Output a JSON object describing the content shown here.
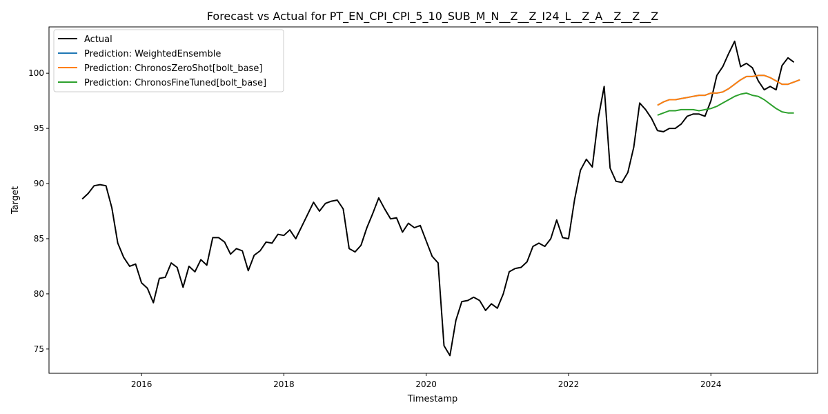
{
  "chart_data": {
    "type": "line",
    "title": "Forecast vs Actual for PT_EN_CPI_CPI_5_10_SUB_M_N__Z__Z_I24_L__Z_A__Z__Z__Z",
    "xlabel": "Timestamp",
    "ylabel": "Target",
    "xlim": [
      2014.7,
      2025.5
    ],
    "ylim": [
      72.8,
      104.2
    ],
    "x_ticks": [
      {
        "value": 2016,
        "label": "2016"
      },
      {
        "value": 2018,
        "label": "2018"
      },
      {
        "value": 2020,
        "label": "2020"
      },
      {
        "value": 2022,
        "label": "2022"
      },
      {
        "value": 2024,
        "label": "2024"
      }
    ],
    "y_ticks": [
      75,
      80,
      85,
      90,
      95,
      100
    ],
    "grid": false,
    "legend_position": "top-left",
    "series": [
      {
        "name": "Actual",
        "color": "#000000",
        "start": 2015.167,
        "step": 0.08333,
        "values": [
          88.6,
          89.1,
          89.8,
          89.9,
          89.8,
          87.8,
          84.6,
          83.3,
          82.5,
          82.7,
          81.0,
          80.5,
          79.2,
          81.4,
          81.5,
          82.8,
          82.4,
          80.6,
          82.5,
          82.0,
          83.1,
          82.6,
          85.1,
          85.1,
          84.7,
          83.6,
          84.1,
          83.9,
          82.1,
          83.5,
          83.9,
          84.7,
          84.6,
          85.4,
          85.3,
          85.8,
          85.0,
          86.1,
          87.2,
          88.3,
          87.5,
          88.2,
          88.4,
          88.5,
          87.7,
          84.1,
          83.8,
          84.4,
          86.0,
          87.3,
          88.7,
          87.7,
          86.8,
          86.9,
          85.6,
          86.4,
          86.0,
          86.2,
          84.8,
          83.4,
          82.8,
          75.3,
          74.4,
          77.6,
          79.3,
          79.4,
          79.7,
          79.4,
          78.5,
          79.1,
          78.7,
          80.0,
          82.0,
          82.3,
          82.4,
          82.9,
          84.3,
          84.6,
          84.3,
          85.0,
          86.7,
          85.1,
          85.0,
          88.5,
          91.2,
          92.2,
          91.5,
          95.9,
          98.8,
          91.4,
          90.2,
          90.1,
          91.0,
          93.3,
          97.3,
          96.7,
          95.9,
          94.8,
          94.7,
          95.0,
          95.0,
          95.4,
          96.1,
          96.3,
          96.3,
          96.1,
          97.5,
          99.8,
          100.6,
          101.8,
          102.9,
          100.6,
          100.9,
          100.5,
          99.3,
          98.5,
          98.8,
          98.5,
          100.7,
          101.4,
          101.0
        ]
      },
      {
        "name": "Prediction: WeightedEnsemble",
        "color": "#1f77b4",
        "start": 2023.25,
        "step": 0.08333,
        "values": [
          97.1,
          97.4,
          97.6,
          97.6,
          97.7,
          97.8,
          97.9,
          98.0,
          98.0,
          98.2,
          98.2,
          98.3,
          98.6,
          99.0,
          99.4,
          99.7,
          99.7,
          99.8,
          99.8,
          99.6,
          99.3,
          99.0,
          99.0,
          99.2,
          99.4
        ]
      },
      {
        "name": "Prediction: ChronosZeroShot[bolt_base]",
        "color": "#ff7f0e",
        "start": 2023.25,
        "step": 0.08333,
        "values": [
          97.1,
          97.4,
          97.6,
          97.6,
          97.7,
          97.8,
          97.9,
          98.0,
          98.0,
          98.2,
          98.2,
          98.3,
          98.6,
          99.0,
          99.4,
          99.7,
          99.7,
          99.8,
          99.8,
          99.6,
          99.3,
          99.0,
          99.0,
          99.2,
          99.4
        ]
      },
      {
        "name": "Prediction: ChronosFineTuned[bolt_base]",
        "color": "#2ca02c",
        "start": 2023.25,
        "step": 0.08333,
        "values": [
          96.2,
          96.4,
          96.6,
          96.6,
          96.7,
          96.7,
          96.7,
          96.6,
          96.7,
          96.8,
          97.0,
          97.3,
          97.6,
          97.9,
          98.1,
          98.2,
          98.0,
          97.9,
          97.6,
          97.2,
          96.8,
          96.5,
          96.4,
          96.4
        ]
      }
    ]
  }
}
